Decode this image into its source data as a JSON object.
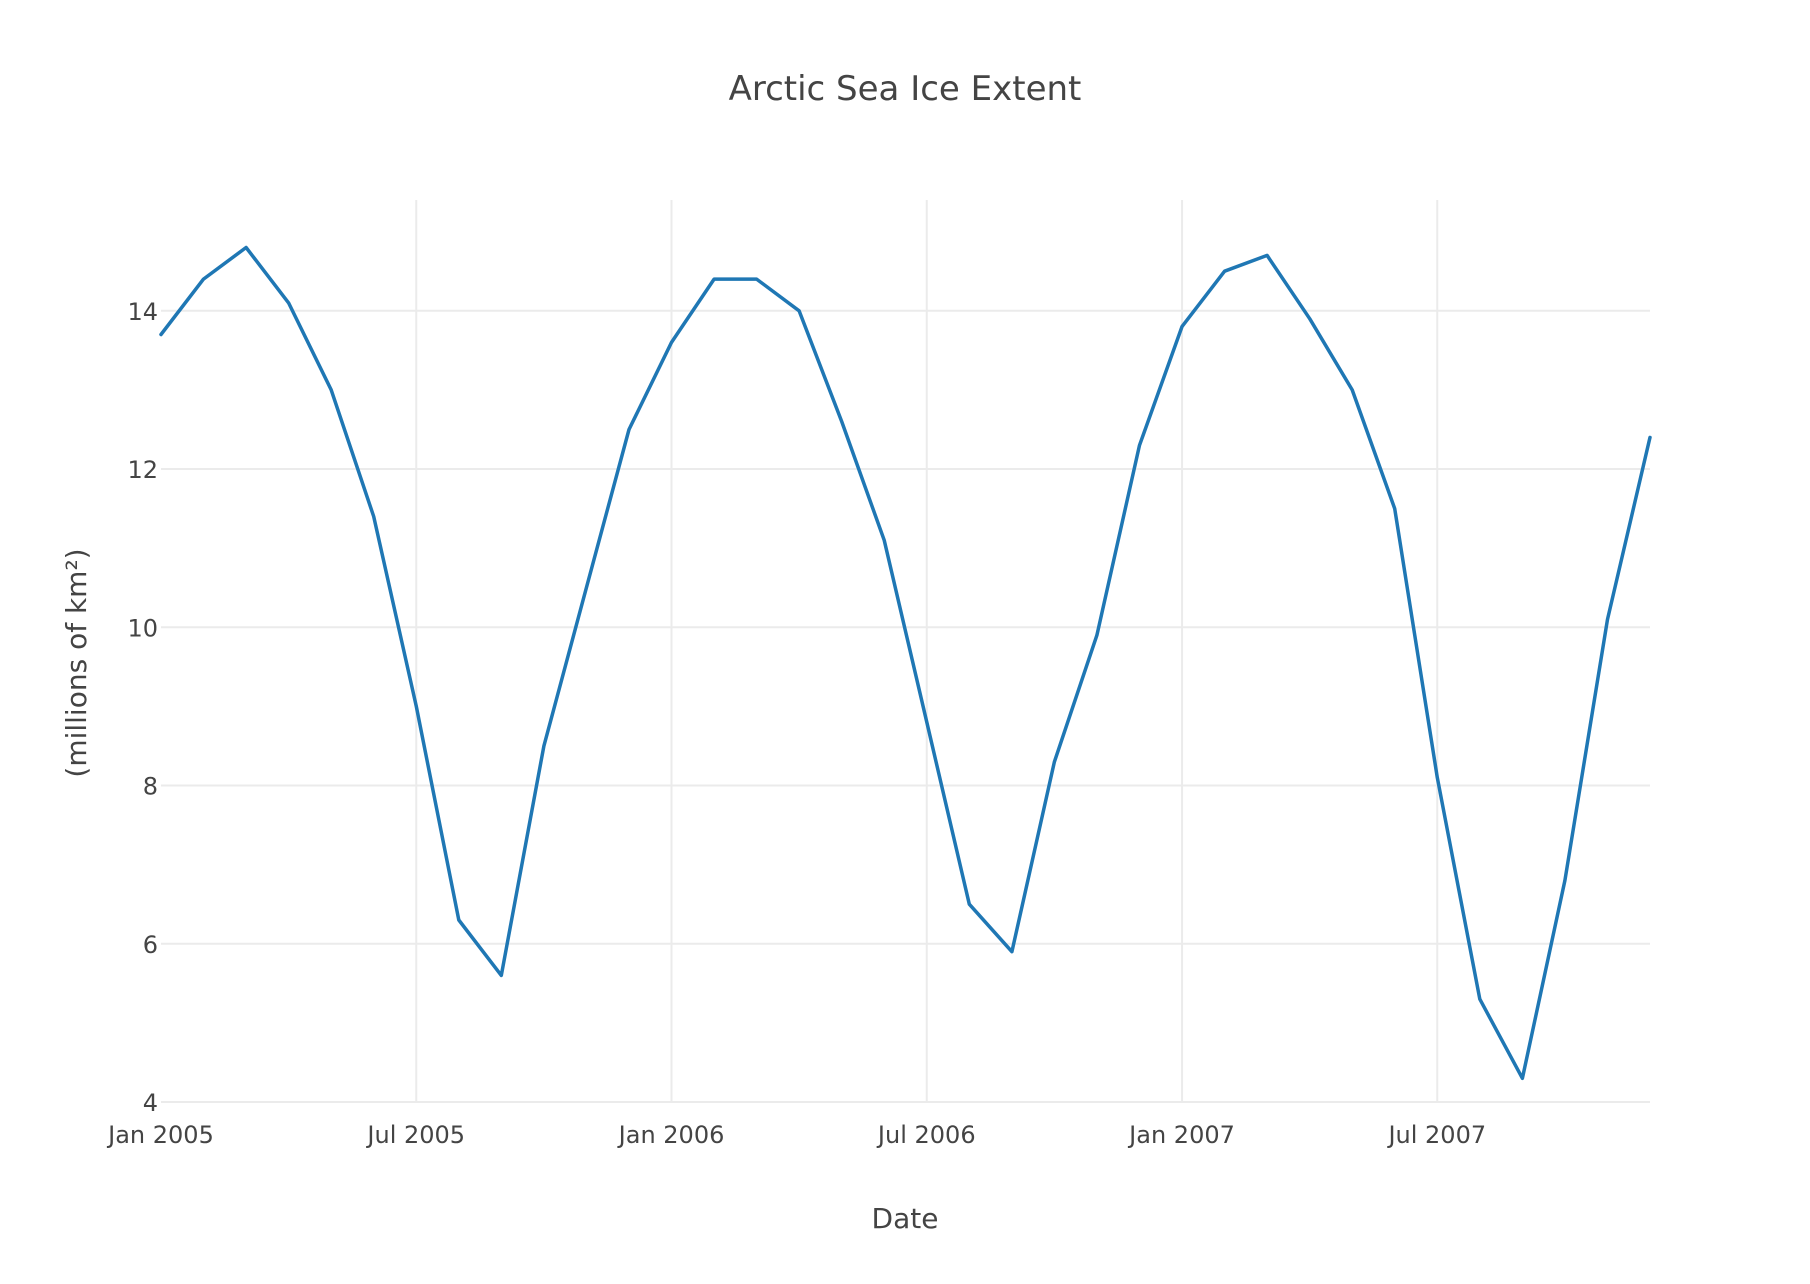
{
  "chart_data": {
    "type": "line",
    "title": "Arctic Sea Ice Extent",
    "xlabel": "Date",
    "ylabel": "(millions of km²)",
    "x": [
      "2005-01",
      "2005-02",
      "2005-03",
      "2005-04",
      "2005-05",
      "2005-06",
      "2005-07",
      "2005-08",
      "2005-09",
      "2005-10",
      "2005-11",
      "2005-12",
      "2006-01",
      "2006-02",
      "2006-03",
      "2006-04",
      "2006-05",
      "2006-06",
      "2006-07",
      "2006-08",
      "2006-09",
      "2006-10",
      "2006-11",
      "2006-12",
      "2007-01",
      "2007-02",
      "2007-03",
      "2007-04",
      "2007-05",
      "2007-06",
      "2007-07",
      "2007-08",
      "2007-09",
      "2007-10",
      "2007-11",
      "2007-12"
    ],
    "series": [
      {
        "values": [
          13.7,
          14.4,
          14.8,
          14.1,
          13.0,
          11.4,
          9.0,
          6.3,
          5.6,
          8.5,
          10.5,
          12.5,
          13.6,
          14.4,
          14.4,
          14.0,
          12.6,
          11.1,
          8.8,
          6.5,
          5.9,
          8.3,
          9.9,
          12.3,
          13.8,
          14.5,
          14.7,
          13.9,
          13.0,
          11.5,
          8.1,
          5.3,
          4.3,
          6.8,
          10.1,
          12.4
        ]
      }
    ],
    "xlim": [
      "2005-01",
      "2007-12"
    ],
    "ylim": [
      4,
      15.4
    ],
    "yticks": [
      4,
      6,
      8,
      10,
      12,
      14
    ],
    "xticks": [
      {
        "date": "2005-01",
        "label": "Jan 2005"
      },
      {
        "date": "2005-07",
        "label": "Jul 2005"
      },
      {
        "date": "2006-01",
        "label": "Jan 2006"
      },
      {
        "date": "2006-07",
        "label": "Jul 2006"
      },
      {
        "date": "2007-01",
        "label": "Jan 2007"
      },
      {
        "date": "2007-07",
        "label": "Jul 2007"
      }
    ],
    "grid": true,
    "line_color": "#1f77b4"
  }
}
